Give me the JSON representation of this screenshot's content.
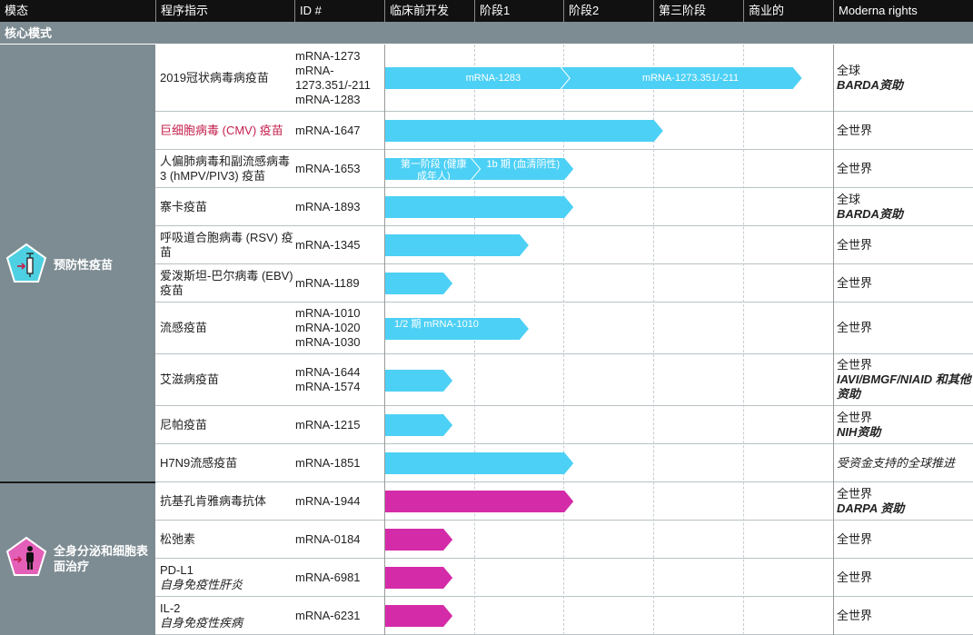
{
  "header": {
    "modality": "模态",
    "program": "程序指示",
    "id": "ID #",
    "preclinical": "临床前开发",
    "phase1": "阶段1",
    "phase2": "阶段2",
    "phase3": "第三阶段",
    "commercial": "商业的",
    "rights": "Moderna rights"
  },
  "section": "核心模式",
  "modalities": [
    {
      "name": "预防性疫苗",
      "icon": "syringe-pentagon-icon",
      "color": "#4dd0e1"
    },
    {
      "name": "全身分泌和细胞表面治疗",
      "icon": "person-pentagon-icon",
      "color": "#e35fb8"
    }
  ],
  "colors": {
    "vaccine_bar": "#4dd0f5",
    "therapeutic_bar": "#d42ba8",
    "header_bg": "#111111",
    "modality_bg": "#7d8c92"
  },
  "programs": [
    {
      "program": "2019冠状病毒病疫苗",
      "ids": [
        "mRNA-1273",
        "mRNA-1273.351/-211",
        "mRNA-1283"
      ],
      "stage_end": 4.55,
      "segments": [
        {
          "label": "mRNA-1283",
          "end": 2.0
        },
        {
          "label": "mRNA-1273.351/-211",
          "end": 4.55
        }
      ],
      "rights": [
        {
          "text": "全球",
          "style": "n"
        },
        {
          "text": "BARDA资助",
          "style": "b"
        }
      ]
    },
    {
      "program": "巨细胞病毒 (CMV) 疫苗",
      "ids": [
        "mRNA-1647"
      ],
      "stage_end": 3.0,
      "highlight": true,
      "rights": [
        {
          "text": "全世界",
          "style": "n"
        }
      ]
    },
    {
      "program": "人偏肺病毒和副流感病毒 3 (hMPV/PIV3) 疫苗",
      "ids": [
        "mRNA-1653"
      ],
      "stage_end": 2.0,
      "segments": [
        {
          "label": "第一阶段 (健康成年人)",
          "end": 1.0
        },
        {
          "label": "1b 期 (血清阴性)",
          "end": 2.0
        }
      ],
      "rights": [
        {
          "text": "全世界",
          "style": "n"
        }
      ]
    },
    {
      "program": "寨卡疫苗",
      "ids": [
        "mRNA-1893"
      ],
      "stage_end": 2.0,
      "rights": [
        {
          "text": "全球",
          "style": "n"
        },
        {
          "text": "BARDA资助",
          "style": "b"
        }
      ]
    },
    {
      "program": "呼吸道合胞病毒 (RSV) 疫苗",
      "ids": [
        "mRNA-1345"
      ],
      "stage_end": 1.5,
      "rights": [
        {
          "text": "全世界",
          "style": "n"
        }
      ]
    },
    {
      "program": "爱泼斯坦-巴尔病毒 (EBV) 疫苗",
      "ids": [
        "mRNA-1189"
      ],
      "stage_end": 0.65,
      "rights": [
        {
          "text": "全世界",
          "style": "n"
        }
      ]
    },
    {
      "program": "流感疫苗",
      "ids": [
        "mRNA-1010",
        "mRNA-1020",
        "mRNA-1030"
      ],
      "stage_end": 1.5,
      "segments": [
        {
          "label": "1/2 期 mRNA-1010",
          "end": 1.5
        }
      ],
      "rights": [
        {
          "text": "全世界",
          "style": "n"
        }
      ]
    },
    {
      "program": "艾滋病疫苗",
      "ids": [
        "mRNA-1644",
        "mRNA-1574"
      ],
      "stage_end": 0.65,
      "rights": [
        {
          "text": "全世界",
          "style": "n"
        },
        {
          "text": "IAVI/BMGF/NIAID 和其他资助",
          "style": "b"
        }
      ]
    },
    {
      "program": "尼帕疫苗",
      "ids": [
        "mRNA-1215"
      ],
      "stage_end": 0.65,
      "rights": [
        {
          "text": "全世界",
          "style": "n"
        },
        {
          "text": "NIH资助",
          "style": "b"
        }
      ]
    },
    {
      "program": "H7N9流感疫苗",
      "ids": [
        "mRNA-1851"
      ],
      "stage_end": 2.0,
      "rights": [
        {
          "text": "受资金支持的全球推进",
          "style": "i"
        }
      ]
    },
    {
      "program": "抗基孔肯雅病毒抗体",
      "ids": [
        "mRNA-1944"
      ],
      "stage_end": 2.0,
      "rights": [
        {
          "text": "全世界",
          "style": "n"
        },
        {
          "text": "DARPA 资助",
          "style": "b"
        }
      ]
    },
    {
      "program": "松弛素",
      "ids": [
        "mRNA-0184"
      ],
      "stage_end": 0.65,
      "rights": [
        {
          "text": "全世界",
          "style": "n"
        }
      ]
    },
    {
      "program": "PD-L1",
      "subtitle": "自身免疫性肝炎",
      "ids": [
        "mRNA-6981"
      ],
      "stage_end": 0.65,
      "rights": [
        {
          "text": "全世界",
          "style": "n"
        }
      ]
    },
    {
      "program": "IL-2",
      "subtitle": "自身免疫性疾病",
      "ids": [
        "mRNA-6231"
      ],
      "stage_end": 0.65,
      "rights": [
        {
          "text": "全世界",
          "style": "n"
        }
      ]
    }
  ]
}
